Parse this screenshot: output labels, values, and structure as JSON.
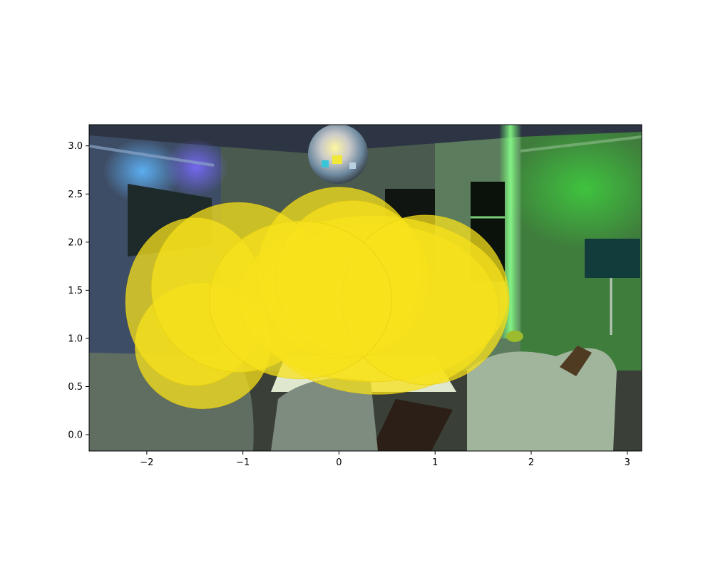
{
  "figure": {
    "background_scene": "dimly lit living room with disco ball, green and blue lighting, armchairs, table and floor lamp",
    "colors": {
      "ellipse_fill": "#f7e21c",
      "ellipse_edge": "#e8cf10",
      "axis": "#000000",
      "figure_bg": "#ffffff"
    }
  },
  "chart_data": {
    "type": "scatter",
    "title": "",
    "xlabel": "",
    "ylabel": "",
    "xlim": [
      -2.6,
      3.15
    ],
    "ylim": [
      -0.17,
      3.22
    ],
    "grid": false,
    "legend": null,
    "x_ticks": [
      -2,
      -1,
      0,
      1,
      2,
      3
    ],
    "x_tick_labels": [
      "−2",
      "−1",
      "0",
      "1",
      "2",
      "3"
    ],
    "y_ticks": [
      0.0,
      0.5,
      1.0,
      1.5,
      2.0,
      2.5,
      3.0
    ],
    "y_tick_labels": [
      "0.0",
      "0.5",
      "1.0",
      "1.5",
      "2.0",
      "2.5",
      "3.0"
    ],
    "marker": "ellipse",
    "marker_alpha": 0.75,
    "ellipses": [
      {
        "cx": -1.42,
        "cy": 0.92,
        "width": 1.4,
        "height": 1.3
      },
      {
        "cx": -1.5,
        "cy": 1.38,
        "width": 1.44,
        "height": 1.74
      },
      {
        "cx": -1.05,
        "cy": 1.53,
        "width": 1.8,
        "height": 1.76
      },
      {
        "cx": 0.4,
        "cy": 1.3,
        "width": 2.5,
        "height": 1.76
      },
      {
        "cx": 0.35,
        "cy": 1.41,
        "width": 2.8,
        "height": 1.72
      },
      {
        "cx": 0.0,
        "cy": 1.68,
        "width": 1.7,
        "height": 1.78
      },
      {
        "cx": 0.14,
        "cy": 1.62,
        "width": 1.6,
        "height": 1.62
      },
      {
        "cx": 0.9,
        "cy": 1.4,
        "width": 1.74,
        "height": 1.76
      },
      {
        "cx": -0.4,
        "cy": 1.4,
        "width": 1.9,
        "height": 1.64
      }
    ]
  }
}
